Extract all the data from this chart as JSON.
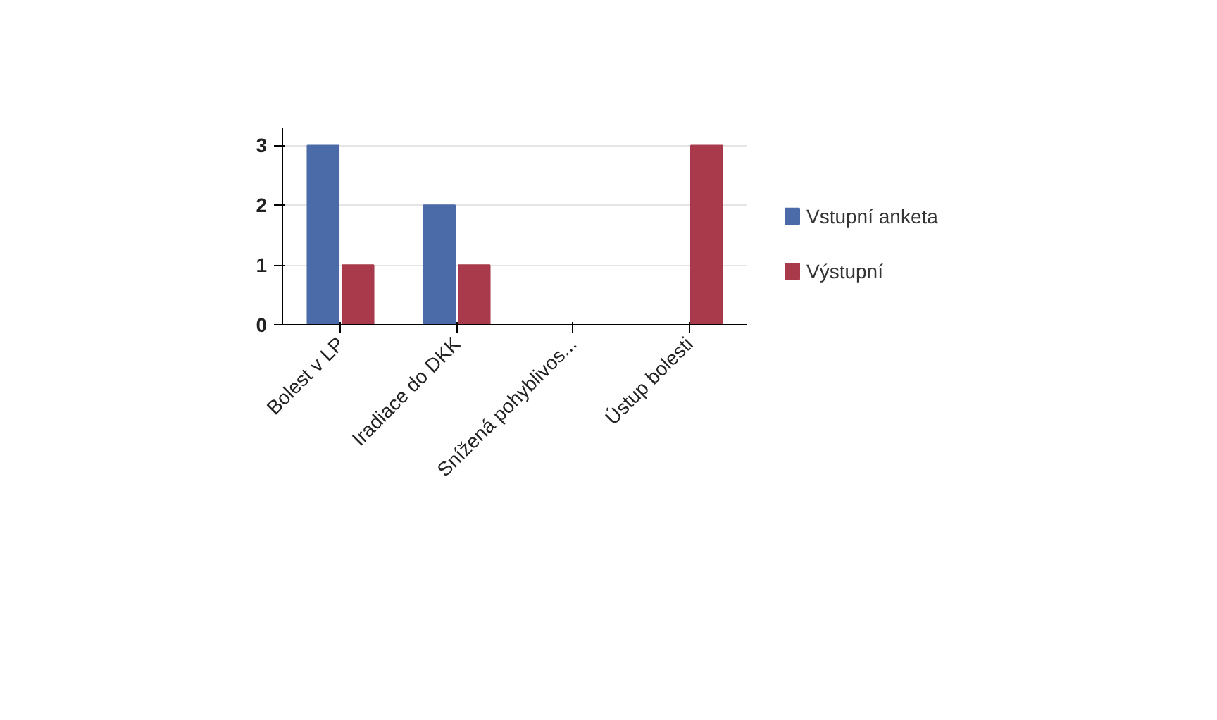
{
  "chart_data": {
    "type": "bar",
    "categories": [
      "Bolest v LP",
      "Iradiace do DKK",
      "Snížená pohyblivos...",
      "Ústup bolesti"
    ],
    "series": [
      {
        "name": "Vstupní anketa",
        "color": "#4a6aa8",
        "values": [
          3,
          2,
          0,
          0
        ]
      },
      {
        "name": "Výstupní",
        "color": "#a83a4c",
        "values": [
          1,
          1,
          0,
          3
        ]
      }
    ],
    "ylim": [
      0,
      3.3
    ],
    "yticks": [
      0,
      1,
      2,
      3
    ],
    "grid": "y",
    "legend": "right"
  }
}
